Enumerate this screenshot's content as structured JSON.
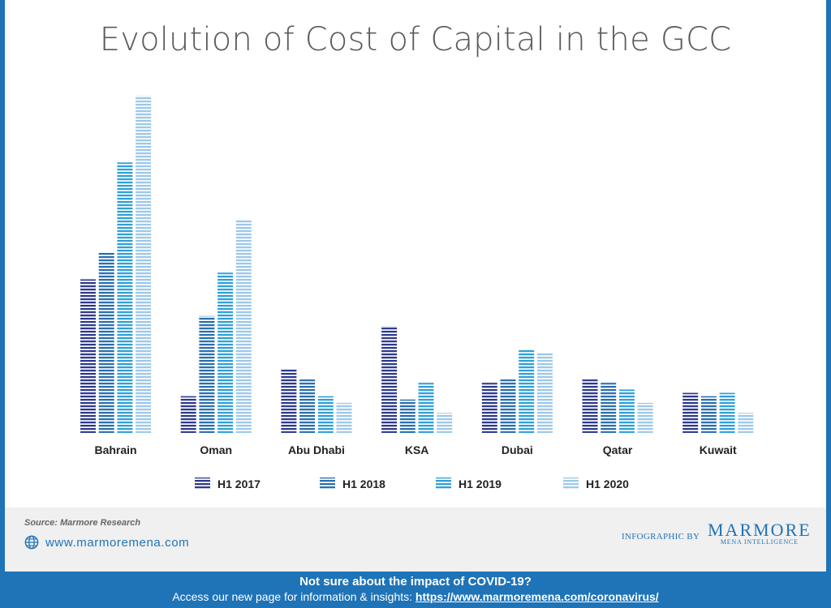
{
  "chart_data": {
    "type": "bar",
    "title": "Evolution of Cost of Capital in the GCC",
    "categories": [
      "Bahrain",
      "Oman",
      "Abu Dhabi",
      "KSA",
      "Dubai",
      "Qatar",
      "Kuwait"
    ],
    "series": [
      {
        "name": "H1 2017",
        "color": "#2e3a8c",
        "values": [
          46,
          11,
          19,
          32,
          15,
          16,
          12
        ]
      },
      {
        "name": "H1 2018",
        "color": "#2a6fad",
        "values": [
          54,
          35,
          16,
          10,
          16,
          15,
          11
        ]
      },
      {
        "name": "H1 2019",
        "color": "#2fa0d8",
        "values": [
          81,
          48,
          11,
          15,
          25,
          13,
          12
        ]
      },
      {
        "name": "H1 2020",
        "color": "#9cc8ea",
        "values": [
          101,
          64,
          9,
          6,
          24,
          9,
          6
        ]
      }
    ],
    "ylim": [
      0,
      101
    ],
    "grid": false,
    "legend_position": "bottom",
    "y_axis_labels": false
  },
  "footer": {
    "source": "Source: Marmore Research",
    "website": "www.marmoremena.com",
    "infographic_by": "INFOGRAPHIC BY",
    "logo_main": "MARMORE",
    "logo_sub": "MENA INTELLIGENCE"
  },
  "banner": {
    "heading": "Not sure about the impact of COVID-19?",
    "text": "Access our new page for information & insights:",
    "link": "https://www.marmoremena.com/coronavirus/"
  }
}
